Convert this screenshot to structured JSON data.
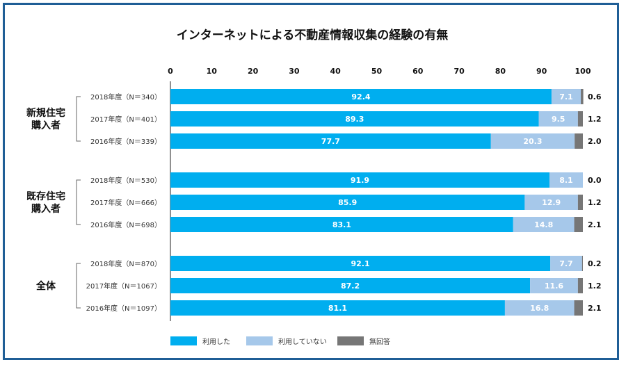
{
  "chart_data": {
    "type": "bar",
    "orientation": "horizontal",
    "stacked": true,
    "title": "インターネットによる不動産情報収集の経験の有無",
    "xlim": [
      0,
      100
    ],
    "xticks": [
      "0",
      "10",
      "20",
      "30",
      "40",
      "50",
      "60",
      "70",
      "80",
      "90",
      "100"
    ],
    "legend_position": "bottom-left",
    "series": [
      {
        "name": "利用した",
        "color": "#00aeef"
      },
      {
        "name": "利用していない",
        "color": "#a6c8ea"
      },
      {
        "name": "無回答",
        "color": "#767676"
      }
    ],
    "groups": [
      {
        "name_lines": [
          "新規住宅",
          "購入者"
        ],
        "rows": [
          {
            "label": "2018年度（N＝340）",
            "values": [
              92.4,
              7.1,
              0.6
            ],
            "labels": [
              "92.4",
              "7.1",
              "0.6"
            ]
          },
          {
            "label": "2017年度（N＝401）",
            "values": [
              89.3,
              9.5,
              1.2
            ],
            "labels": [
              "89.3",
              "9.5",
              "1.2"
            ]
          },
          {
            "label": "2016年度（N＝339）",
            "values": [
              77.7,
              20.3,
              2.0
            ],
            "labels": [
              "77.7",
              "20.3",
              "2.0"
            ]
          }
        ]
      },
      {
        "name_lines": [
          "既存住宅",
          "購入者"
        ],
        "rows": [
          {
            "label": "2018年度（N＝530）",
            "values": [
              91.9,
              8.1,
              0.0
            ],
            "labels": [
              "91.9",
              "8.1",
              "0.0"
            ]
          },
          {
            "label": "2017年度（N＝666）",
            "values": [
              85.9,
              12.9,
              1.2
            ],
            "labels": [
              "85.9",
              "12.9",
              "1.2"
            ]
          },
          {
            "label": "2016年度（N＝698）",
            "values": [
              83.1,
              14.8,
              2.1
            ],
            "labels": [
              "83.1",
              "14.8",
              "2.1"
            ]
          }
        ]
      },
      {
        "name_lines": [
          "全体"
        ],
        "rows": [
          {
            "label": "2018年度（N＝870）",
            "values": [
              92.1,
              7.7,
              0.2
            ],
            "labels": [
              "92.1",
              "7.7",
              "0.2"
            ]
          },
          {
            "label": "2017年度（N＝1067）",
            "values": [
              87.2,
              11.6,
              1.2
            ],
            "labels": [
              "87.2",
              "11.6",
              "1.2"
            ]
          },
          {
            "label": "2016年度（N＝1097）",
            "values": [
              81.1,
              16.8,
              2.1
            ],
            "labels": [
              "81.1",
              "16.8",
              "2.1"
            ]
          }
        ]
      }
    ]
  }
}
